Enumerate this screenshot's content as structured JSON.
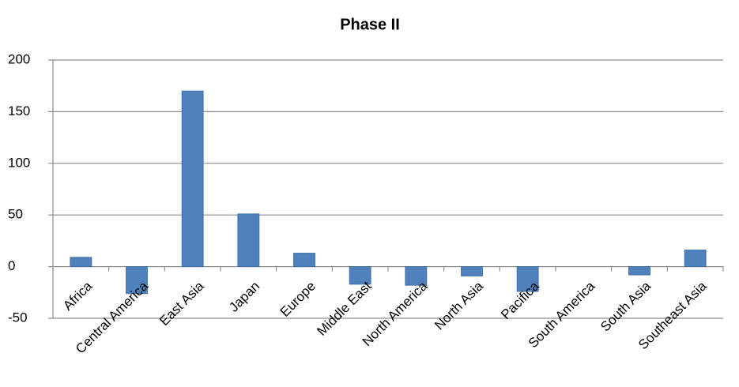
{
  "chart_data": {
    "type": "bar",
    "title": "Phase II",
    "categories": [
      "Africa",
      "Central America",
      "East Asia",
      "Japan",
      "Europe",
      "Middle East",
      "North America",
      "North Asia",
      "Pacifica",
      "South America",
      "South Asia",
      "Southeast Asia"
    ],
    "values": [
      9,
      -26,
      170,
      51,
      13,
      -17,
      -18,
      -9,
      -24,
      0,
      -8,
      16
    ],
    "color": "#4f81bd",
    "ylim": [
      -50,
      200
    ],
    "yticks": [
      -50,
      0,
      50,
      100,
      150,
      200
    ],
    "grid": true
  }
}
